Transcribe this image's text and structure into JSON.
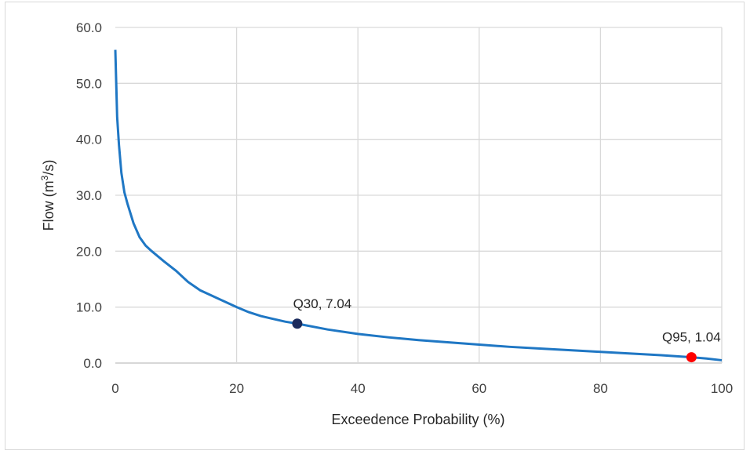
{
  "chart_data": {
    "type": "line",
    "xlabel": "Exceedence Probability (%)",
    "ylabel_parts": [
      "Flow (m",
      "3",
      "/s)"
    ],
    "xlim": [
      0,
      100
    ],
    "ylim": [
      0,
      60
    ],
    "x_ticks": [
      "0",
      "20",
      "40",
      "60",
      "80",
      "100"
    ],
    "y_ticks": [
      "0.0",
      "10.0",
      "20.0",
      "30.0",
      "40.0",
      "50.0",
      "60.0"
    ],
    "grid": true,
    "series": [
      {
        "color": "#1f77c4",
        "x": [
          0,
          0.3,
          0.6,
          1,
          1.5,
          2,
          3,
          4,
          5,
          6,
          8,
          10,
          12,
          14,
          16,
          18,
          20,
          22,
          24,
          26,
          28,
          30,
          35,
          40,
          45,
          50,
          55,
          60,
          65,
          70,
          75,
          80,
          85,
          90,
          95,
          97.5,
          100
        ],
        "y": [
          56,
          44,
          39,
          34,
          30.5,
          28.5,
          25,
          22.5,
          21,
          20,
          18.2,
          16.5,
          14.5,
          13,
          12,
          11,
          10,
          9.1,
          8.4,
          7.9,
          7.4,
          7.04,
          6,
          5.2,
          4.6,
          4.1,
          3.7,
          3.3,
          2.9,
          2.6,
          2.3,
          2.0,
          1.7,
          1.4,
          1.04,
          0.8,
          0.5
        ]
      }
    ],
    "points": [
      {
        "x": 30,
        "y": 7.04,
        "label": "Q30, 7.04",
        "color": "#1a2a5c"
      },
      {
        "x": 95,
        "y": 1.04,
        "label": "Q95, 1.04",
        "color": "#ff0000"
      }
    ]
  }
}
